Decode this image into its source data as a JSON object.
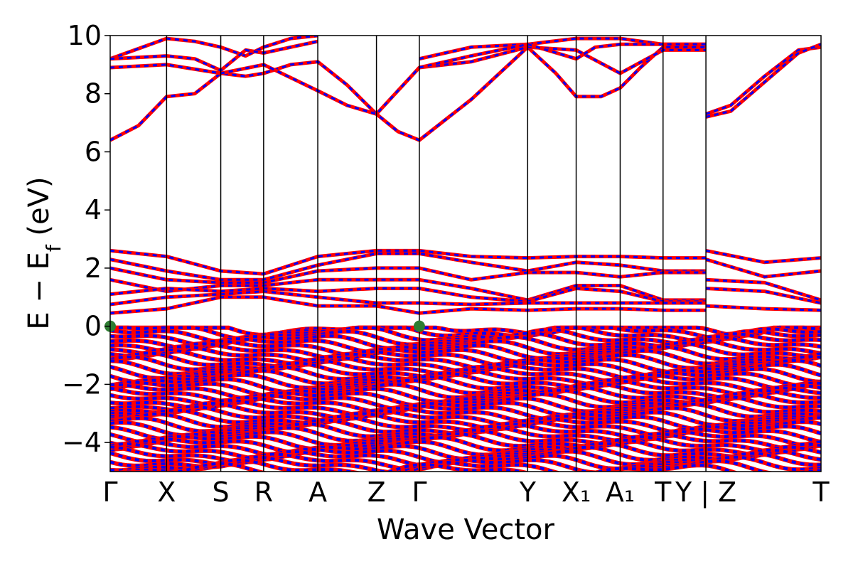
{
  "chart_data": {
    "type": "line",
    "xlabel": "Wave Vector",
    "ylabel": "E − E_f (eV)",
    "ylabel_parts": {
      "main": "E − E",
      "sub": "f",
      "unit": " (eV)"
    },
    "ylim": [
      -5,
      10
    ],
    "yticks": [
      "−4",
      "−2",
      "0",
      "2",
      "4",
      "6",
      "8",
      "10"
    ],
    "ytick_values": [
      -4,
      -2,
      0,
      2,
      4,
      6,
      8,
      10
    ],
    "grid": false,
    "legend": "none",
    "line_styles": {
      "primary": "#ff0000",
      "secondary_dashed": "#0000ff",
      "frame": "#000000",
      "marker": "#2e7d32"
    },
    "kpath": [
      {
        "label": "Γ",
        "x": 0.0
      },
      {
        "label": "X",
        "x": 0.5
      },
      {
        "label": "S",
        "x": 0.98
      },
      {
        "label": "R",
        "x": 1.36
      },
      {
        "label": "A",
        "x": 1.84
      },
      {
        "label": "Z",
        "x": 2.36
      },
      {
        "label": "Γ",
        "x": 2.74
      },
      {
        "label": "Y",
        "x": 3.7
      },
      {
        "label": "X₁",
        "x": 4.13
      },
      {
        "label": "A₁",
        "x": 4.52
      },
      {
        "label": "T",
        "x": 4.9
      },
      {
        "label": "Y | Z",
        "x": 5.28
      },
      {
        "label": "T",
        "x": 6.3
      }
    ],
    "segment_break_after": "Y",
    "series": [
      {
        "values": [
          [
            0,
            6.4
          ],
          [
            0.25,
            6.9
          ],
          [
            0.5,
            7.9
          ],
          [
            0.75,
            8.0
          ],
          [
            0.98,
            8.7
          ],
          [
            1.2,
            8.6
          ],
          [
            1.36,
            8.7
          ],
          [
            1.6,
            9.0
          ],
          [
            1.84,
            9.1
          ],
          [
            2.1,
            8.3
          ],
          [
            2.36,
            7.3
          ],
          [
            2.55,
            6.7
          ],
          [
            2.74,
            6.4
          ],
          [
            3.2,
            7.8
          ],
          [
            3.7,
            9.6
          ],
          [
            3.95,
            8.7
          ],
          [
            4.13,
            7.9
          ],
          [
            4.35,
            7.9
          ],
          [
            4.52,
            8.2
          ],
          [
            4.7,
            8.9
          ],
          [
            4.9,
            9.6
          ],
          [
            5.28,
            9.6
          ]
        ]
      },
      {
        "values": [
          [
            0,
            8.9
          ],
          [
            0.5,
            9.0
          ],
          [
            0.98,
            8.7
          ],
          [
            1.36,
            9.0
          ],
          [
            1.84,
            8.1
          ],
          [
            2.1,
            7.6
          ],
          [
            2.36,
            7.3
          ],
          [
            2.55,
            8.1
          ],
          [
            2.74,
            8.9
          ],
          [
            3.2,
            9.1
          ],
          [
            3.7,
            9.6
          ],
          [
            4.13,
            9.5
          ],
          [
            4.52,
            8.7
          ],
          [
            4.9,
            9.5
          ],
          [
            5.28,
            9.5
          ]
        ]
      },
      {
        "values": [
          [
            0,
            9.2
          ],
          [
            0.5,
            9.9
          ],
          [
            0.75,
            9.8
          ],
          [
            0.98,
            9.6
          ],
          [
            1.2,
            9.3
          ],
          [
            1.36,
            9.6
          ],
          [
            1.6,
            9.9
          ],
          [
            1.84,
            10.0
          ]
        ]
      },
      {
        "values": [
          [
            0,
            9.2
          ],
          [
            0.5,
            9.3
          ],
          [
            0.75,
            9.2
          ],
          [
            0.98,
            8.8
          ],
          [
            1.2,
            9.5
          ],
          [
            1.36,
            9.4
          ],
          [
            1.6,
            9.6
          ],
          [
            1.84,
            9.8
          ]
        ]
      },
      {
        "values": [
          [
            2.74,
            9.2
          ],
          [
            3.2,
            9.6
          ],
          [
            3.7,
            9.7
          ],
          [
            4.13,
            9.9
          ],
          [
            4.52,
            9.9
          ],
          [
            4.9,
            9.7
          ],
          [
            5.28,
            9.7
          ]
        ]
      },
      {
        "values": [
          [
            2.74,
            8.9
          ],
          [
            3.2,
            9.3
          ],
          [
            3.7,
            9.7
          ],
          [
            4.13,
            9.2
          ],
          [
            4.3,
            9.6
          ],
          [
            4.52,
            9.7
          ],
          [
            4.9,
            9.7
          ],
          [
            5.28,
            9.7
          ]
        ]
      },
      {
        "values": [
          [
            5.28,
            7.3
          ],
          [
            5.5,
            7.6
          ],
          [
            5.8,
            8.6
          ],
          [
            6.1,
            9.5
          ],
          [
            6.3,
            9.6
          ]
        ]
      },
      {
        "values": [
          [
            5.28,
            7.2
          ],
          [
            5.5,
            7.4
          ],
          [
            5.8,
            8.4
          ],
          [
            6.1,
            9.4
          ],
          [
            6.3,
            9.7
          ]
        ]
      },
      {
        "values": [
          [
            0,
            2.6
          ],
          [
            0.5,
            2.4
          ],
          [
            0.98,
            1.9
          ],
          [
            1.36,
            1.8
          ],
          [
            1.84,
            2.4
          ],
          [
            2.36,
            2.6
          ],
          [
            2.74,
            2.6
          ],
          [
            3.2,
            2.4
          ],
          [
            3.7,
            2.35
          ],
          [
            4.13,
            2.4
          ],
          [
            4.52,
            2.4
          ],
          [
            4.9,
            2.35
          ],
          [
            5.28,
            2.35
          ]
        ]
      },
      {
        "values": [
          [
            0,
            2.3
          ],
          [
            0.5,
            1.9
          ],
          [
            0.98,
            1.6
          ],
          [
            1.36,
            1.6
          ],
          [
            1.84,
            2.1
          ],
          [
            2.36,
            2.5
          ],
          [
            2.74,
            2.5
          ],
          [
            3.2,
            2.2
          ],
          [
            3.7,
            1.9
          ],
          [
            4.13,
            2.2
          ],
          [
            4.52,
            2.1
          ],
          [
            4.9,
            1.9
          ],
          [
            5.28,
            1.9
          ]
        ]
      },
      {
        "values": [
          [
            0,
            2.0
          ],
          [
            0.5,
            1.6
          ],
          [
            0.98,
            1.5
          ],
          [
            1.36,
            1.5
          ],
          [
            1.84,
            1.9
          ],
          [
            2.36,
            2.0
          ],
          [
            2.74,
            2.0
          ],
          [
            3.2,
            1.6
          ],
          [
            3.7,
            1.85
          ],
          [
            4.13,
            1.85
          ],
          [
            4.52,
            1.7
          ],
          [
            4.9,
            1.85
          ],
          [
            5.28,
            1.85
          ]
        ]
      },
      {
        "values": [
          [
            0,
            1.6
          ],
          [
            0.5,
            1.2
          ],
          [
            0.98,
            1.4
          ],
          [
            1.36,
            1.4
          ],
          [
            1.84,
            1.6
          ],
          [
            2.36,
            1.6
          ],
          [
            2.74,
            1.6
          ],
          [
            3.2,
            1.3
          ],
          [
            3.7,
            0.9
          ],
          [
            4.13,
            1.4
          ],
          [
            4.52,
            1.4
          ],
          [
            4.9,
            0.9
          ],
          [
            5.28,
            0.9
          ]
        ]
      },
      {
        "values": [
          [
            0,
            1.1
          ],
          [
            0.5,
            1.3
          ],
          [
            0.98,
            1.2
          ],
          [
            1.36,
            1.3
          ],
          [
            1.84,
            1.2
          ],
          [
            2.36,
            1.3
          ],
          [
            2.74,
            1.3
          ],
          [
            3.2,
            1.0
          ],
          [
            3.7,
            0.85
          ],
          [
            4.13,
            1.3
          ],
          [
            4.52,
            1.2
          ],
          [
            4.9,
            0.85
          ],
          [
            5.28,
            0.85
          ]
        ]
      },
      {
        "values": [
          [
            0,
            0.75
          ],
          [
            0.5,
            1.0
          ],
          [
            0.98,
            1.1
          ],
          [
            1.36,
            1.2
          ],
          [
            1.84,
            1.0
          ],
          [
            2.36,
            0.8
          ],
          [
            2.74,
            0.8
          ],
          [
            3.2,
            0.75
          ],
          [
            3.7,
            0.8
          ],
          [
            4.13,
            0.8
          ],
          [
            4.52,
            0.8
          ],
          [
            4.9,
            0.8
          ],
          [
            5.28,
            0.8
          ]
        ]
      },
      {
        "values": [
          [
            0,
            0.45
          ],
          [
            0.5,
            0.6
          ],
          [
            0.98,
            1.0
          ],
          [
            1.36,
            1.0
          ],
          [
            1.84,
            0.7
          ],
          [
            2.36,
            0.7
          ],
          [
            2.74,
            0.45
          ],
          [
            3.2,
            0.6
          ],
          [
            3.7,
            0.55
          ],
          [
            4.13,
            0.6
          ],
          [
            4.52,
            0.6
          ],
          [
            4.9,
            0.55
          ],
          [
            5.28,
            0.55
          ]
        ]
      },
      {
        "values": [
          [
            5.28,
            2.6
          ],
          [
            5.8,
            2.2
          ],
          [
            6.3,
            2.35
          ]
        ]
      },
      {
        "values": [
          [
            5.28,
            2.3
          ],
          [
            5.8,
            1.7
          ],
          [
            6.3,
            1.9
          ]
        ]
      },
      {
        "values": [
          [
            5.28,
            1.6
          ],
          [
            5.8,
            1.5
          ],
          [
            6.3,
            0.9
          ]
        ]
      },
      {
        "values": [
          [
            5.28,
            1.3
          ],
          [
            5.8,
            1.2
          ],
          [
            6.3,
            0.8
          ]
        ]
      },
      {
        "values": [
          [
            5.28,
            0.7
          ],
          [
            5.8,
            0.6
          ],
          [
            6.3,
            0.55
          ]
        ]
      }
    ],
    "valence_region": {
      "ymin": -5,
      "ymax": -0.05
    },
    "markers": [
      {
        "x": 0.0,
        "y": 0.0
      },
      {
        "x": 2.74,
        "y": 0.0
      }
    ]
  }
}
